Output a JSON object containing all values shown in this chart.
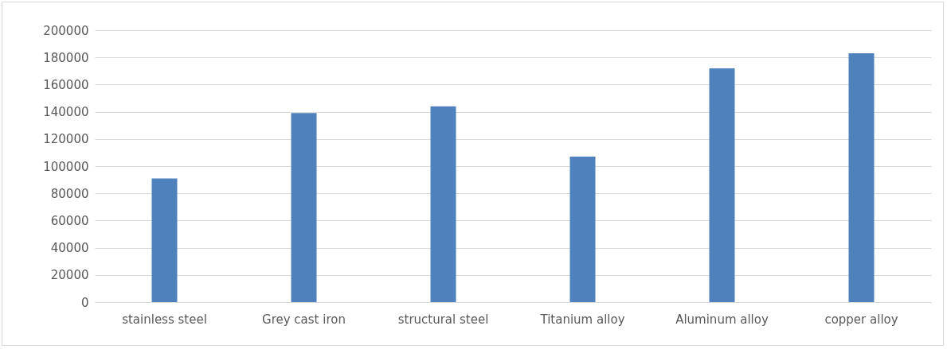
{
  "chart_data": {
    "type": "bar",
    "categories": [
      "stainless steel",
      "Grey cast iron",
      "structural steel",
      "Titanium alloy",
      "Aluminum alloy",
      "copper alloy"
    ],
    "values": [
      91000,
      139000,
      144000,
      107000,
      172000,
      183000
    ],
    "color": "#4f81bd",
    "ylim": [
      0,
      200000
    ],
    "yticks": [
      0,
      20000,
      40000,
      60000,
      80000,
      100000,
      120000,
      140000,
      160000,
      180000,
      200000
    ],
    "grid": "y"
  }
}
